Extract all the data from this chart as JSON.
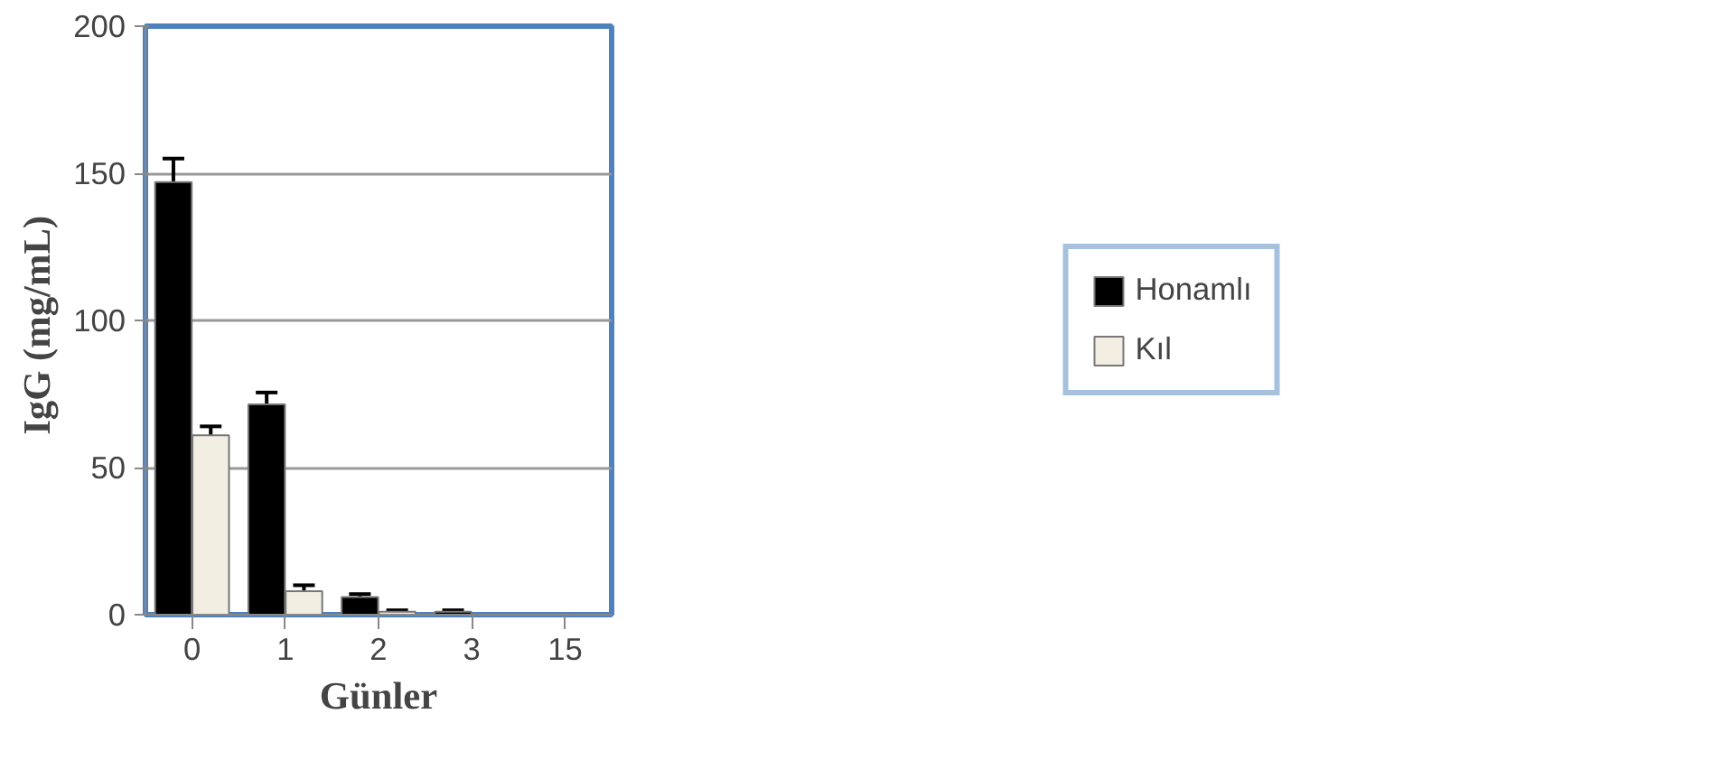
{
  "chart_data": {
    "type": "bar",
    "xlabel": "Günler",
    "ylabel": "IgG  (mg/mL)",
    "categories": [
      "0",
      "1",
      "2",
      "3",
      "15"
    ],
    "series": [
      {
        "name": "Honamlı",
        "color": "#000000",
        "values": [
          147,
          71.5,
          6,
          1,
          null
        ],
        "errors": [
          8,
          4,
          1,
          0.5,
          null
        ]
      },
      {
        "name": "Kıl",
        "color": "#f2efe2",
        "values": [
          61,
          8,
          1,
          null,
          null
        ],
        "errors": [
          3,
          2,
          0.5,
          null,
          null
        ]
      }
    ],
    "ylim": [
      0,
      200
    ],
    "yticks": [
      0,
      50,
      100,
      150,
      200
    ],
    "grid": "y",
    "legend": "right"
  }
}
